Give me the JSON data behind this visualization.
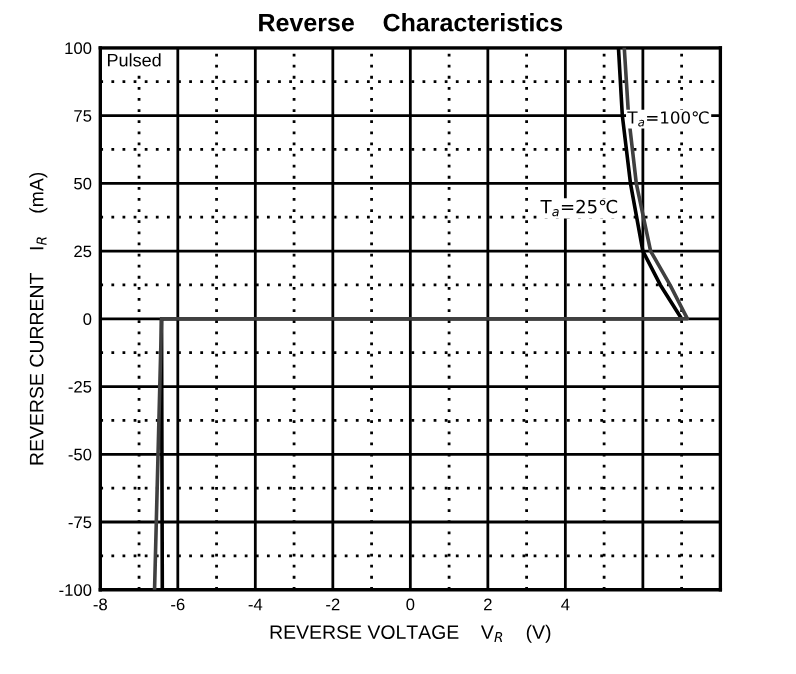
{
  "chart_data": {
    "type": "line",
    "title": "Reverse    Characteristics",
    "xlabel": "REVERSE VOLTAGE    V$_{R}$    (V)",
    "ylabel": "REVERSE CURRENT    I$_{R}$    (mA)",
    "series": [
      {
        "color": "#000000",
        "x": [
          -6.4,
          -6.42,
          7.0,
          6.45,
          6.0,
          5.68,
          5.47,
          5.37
        ],
        "values": [
          -100,
          0,
          0,
          12.5,
          25,
          50,
          75,
          100
        ]
      },
      {
        "color": "#404040",
        "x": [
          -6.6,
          -6.42,
          7.15,
          6.7,
          6.2,
          5.83,
          5.63,
          5.52
        ],
        "values": [
          -100,
          0,
          0,
          12.5,
          25,
          50,
          75,
          100
        ]
      }
    ],
    "annotations": [
      "Pulsed",
      {
        "text": "T$_{a}$=100℃",
        "x": 5.6,
        "y": 72
      },
      "T$_{a}$=25℃"
    ],
    "xlim": [
      -8,
      8
    ],
    "xticks": [
      -8,
      -6,
      -4,
      -2,
      0,
      2,
      4,
      {
        "value": 6,
        "label": null
      },
      {
        "value": 8,
        "label": null
      }
    ],
    "ylim": [
      -100,
      100
    ],
    "yticks": [
      -100,
      -75,
      -50,
      -25,
      0,
      25,
      50,
      75,
      100
    ],
    "grid": true,
    "marker": "none",
    "line_style": "solid"
  }
}
